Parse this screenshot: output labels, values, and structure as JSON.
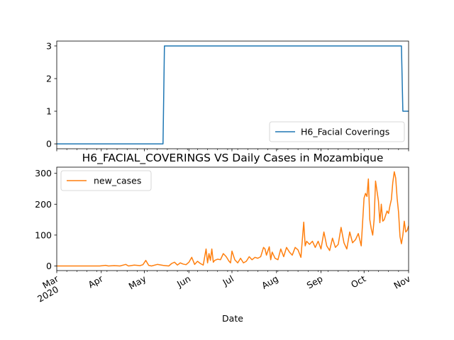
{
  "chart_data": [
    {
      "type": "line",
      "title": "",
      "xlabel": "",
      "ylabel": "",
      "ylim": [
        -0.15,
        3.15
      ],
      "yticks": [
        0,
        1,
        2,
        3
      ],
      "x_range_days": [
        0,
        245
      ],
      "x_start_date": "2020-03-01",
      "legend": "lower-right",
      "series": [
        {
          "name": "H6_Facial Coverings",
          "color": "#1f77b4",
          "points": [
            [
              0,
              0
            ],
            [
              74,
              0
            ],
            [
              75,
              3
            ],
            [
              240,
              3
            ],
            [
              241,
              1
            ],
            [
              245,
              1
            ]
          ]
        }
      ]
    },
    {
      "type": "line",
      "title": "H6_FACIAL_COVERINGS VS Daily Cases in Mozambique",
      "xlabel": "Date",
      "ylabel": "",
      "ylim": [
        -15,
        320
      ],
      "yticks": [
        0,
        100,
        200,
        300
      ],
      "x_range_days": [
        0,
        245
      ],
      "x_start_date": "2020-03-01",
      "legend": "upper-left",
      "xticks": [
        {
          "day": 0,
          "label": "Mar",
          "sublabel": "2020"
        },
        {
          "day": 31,
          "label": "Apr",
          "sublabel": ""
        },
        {
          "day": 61,
          "label": "May",
          "sublabel": ""
        },
        {
          "day": 92,
          "label": "Jun",
          "sublabel": ""
        },
        {
          "day": 122,
          "label": "Jul",
          "sublabel": ""
        },
        {
          "day": 153,
          "label": "Aug",
          "sublabel": ""
        },
        {
          "day": 184,
          "label": "Sep",
          "sublabel": ""
        },
        {
          "day": 214,
          "label": "Oct",
          "sublabel": ""
        },
        {
          "day": 245,
          "label": "Nov",
          "sublabel": ""
        }
      ],
      "series": [
        {
          "name": "new_cases",
          "color": "#ff7f0e",
          "points": [
            [
              0,
              0
            ],
            [
              10,
              0
            ],
            [
              20,
              0
            ],
            [
              30,
              0
            ],
            [
              34,
              2
            ],
            [
              36,
              0
            ],
            [
              40,
              1
            ],
            [
              44,
              0
            ],
            [
              48,
              5
            ],
            [
              50,
              0
            ],
            [
              54,
              3
            ],
            [
              58,
              1
            ],
            [
              60,
              4
            ],
            [
              62,
              18
            ],
            [
              64,
              2
            ],
            [
              66,
              0
            ],
            [
              70,
              5
            ],
            [
              74,
              2
            ],
            [
              78,
              0
            ],
            [
              80,
              8
            ],
            [
              82,
              12
            ],
            [
              84,
              3
            ],
            [
              86,
              10
            ],
            [
              88,
              6
            ],
            [
              90,
              4
            ],
            [
              92,
              12
            ],
            [
              94,
              28
            ],
            [
              96,
              5
            ],
            [
              98,
              15
            ],
            [
              100,
              8
            ],
            [
              102,
              3
            ],
            [
              104,
              55
            ],
            [
              105,
              10
            ],
            [
              106,
              40
            ],
            [
              107,
              18
            ],
            [
              108,
              55
            ],
            [
              109,
              12
            ],
            [
              110,
              18
            ],
            [
              112,
              22
            ],
            [
              114,
              20
            ],
            [
              116,
              40
            ],
            [
              118,
              30
            ],
            [
              120,
              15
            ],
            [
              121,
              10
            ],
            [
              122,
              48
            ],
            [
              124,
              20
            ],
            [
              126,
              10
            ],
            [
              128,
              25
            ],
            [
              130,
              10
            ],
            [
              132,
              15
            ],
            [
              134,
              30
            ],
            [
              136,
              20
            ],
            [
              138,
              28
            ],
            [
              140,
              25
            ],
            [
              142,
              30
            ],
            [
              144,
              60
            ],
            [
              145,
              55
            ],
            [
              146,
              35
            ],
            [
              148,
              62
            ],
            [
              149,
              20
            ],
            [
              150,
              45
            ],
            [
              152,
              25
            ],
            [
              154,
              20
            ],
            [
              156,
              55
            ],
            [
              158,
              30
            ],
            [
              160,
              60
            ],
            [
              162,
              45
            ],
            [
              164,
              35
            ],
            [
              166,
              60
            ],
            [
              168,
              52
            ],
            [
              170,
              28
            ],
            [
              172,
              142
            ],
            [
              173,
              65
            ],
            [
              174,
              80
            ],
            [
              176,
              70
            ],
            [
              178,
              80
            ],
            [
              180,
              60
            ],
            [
              182,
              80
            ],
            [
              184,
              55
            ],
            [
              186,
              110
            ],
            [
              188,
              65
            ],
            [
              190,
              50
            ],
            [
              192,
              90
            ],
            [
              194,
              60
            ],
            [
              196,
              70
            ],
            [
              198,
              125
            ],
            [
              200,
              75
            ],
            [
              202,
              55
            ],
            [
              204,
              110
            ],
            [
              206,
              75
            ],
            [
              208,
              85
            ],
            [
              210,
              105
            ],
            [
              212,
              65
            ],
            [
              214,
              220
            ],
            [
              215,
              235
            ],
            [
              216,
              225
            ],
            [
              217,
              282
            ],
            [
              218,
              150
            ],
            [
              219,
              120
            ],
            [
              220,
              100
            ],
            [
              221,
              150
            ],
            [
              222,
              275
            ],
            [
              224,
              210
            ],
            [
              225,
              140
            ],
            [
              226,
              200
            ],
            [
              227,
              145
            ],
            [
              228,
              150
            ],
            [
              230,
              178
            ],
            [
              231,
              170
            ],
            [
              232,
              195
            ],
            [
              233,
              215
            ],
            [
              234,
              270
            ],
            [
              235,
              305
            ],
            [
              236,
              285
            ],
            [
              237,
              220
            ],
            [
              238,
              175
            ],
            [
              239,
              95
            ],
            [
              240,
              72
            ],
            [
              241,
              100
            ],
            [
              242,
              145
            ],
            [
              243,
              110
            ],
            [
              244,
              115
            ],
            [
              245,
              130
            ]
          ]
        }
      ]
    }
  ]
}
